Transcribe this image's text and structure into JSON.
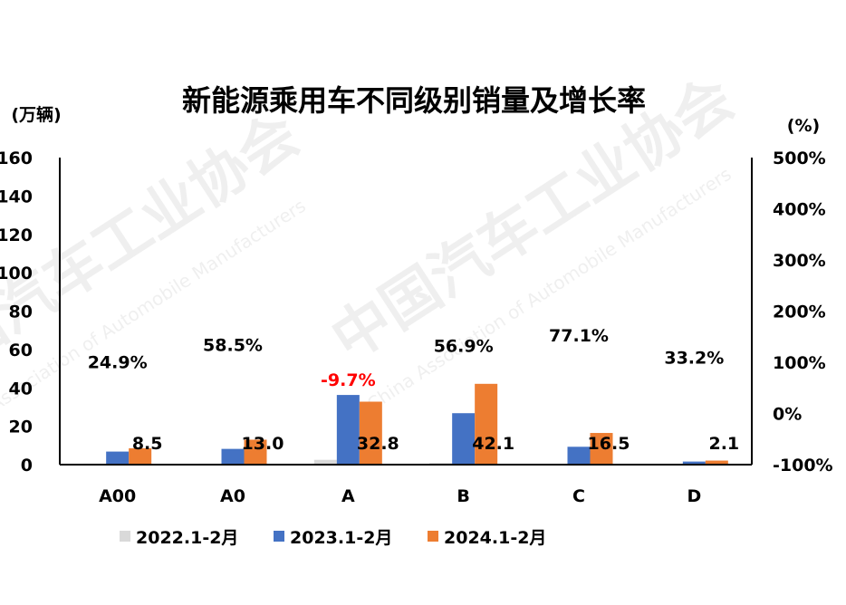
{
  "chart_data": {
    "type": "bar",
    "title": "新能源乘用车不同级别销量及增长率",
    "ylabel_left": "(万辆)",
    "ylabel_right": "(%)",
    "categories": [
      "A00",
      "A0",
      "A",
      "B",
      "C",
      "D"
    ],
    "ylim": [
      0,
      160
    ],
    "yticks": [
      "0",
      "20",
      "40",
      "60",
      "80",
      "100",
      "120",
      "140",
      "160"
    ],
    "y2lim": [
      -100,
      500
    ],
    "y2ticks": [
      "-100%",
      "0%",
      "100%",
      "200%",
      "300%",
      "400%",
      "500%"
    ],
    "series": [
      {
        "name": "2022.1-2月",
        "values": [
          0.5,
          0.5,
          2.5,
          0.8,
          0.2,
          0.2
        ],
        "color": "#d9d9d9"
      },
      {
        "name": "2023.1-2月",
        "values": [
          6.8,
          8.2,
          36.3,
          26.8,
          9.3,
          1.6
        ],
        "color": "#4472c4"
      },
      {
        "name": "2024.1-2月",
        "values": [
          8.5,
          13.0,
          32.8,
          42.1,
          16.5,
          2.1
        ],
        "color": "#ed7d31"
      }
    ],
    "value_labels": [
      "8.5",
      "13.0",
      "32.8",
      "42.1",
      "16.5",
      "2.1"
    ],
    "growth_labels": [
      "24.9%",
      "58.5%",
      "-9.7%",
      "56.9%",
      "77.1%",
      "33.2%"
    ],
    "growth_values": [
      24.9,
      58.5,
      -9.7,
      56.9,
      77.1,
      33.2
    ],
    "growth_colors": [
      "#000000",
      "#000000",
      "#ff0000",
      "#000000",
      "#000000",
      "#000000"
    ],
    "watermark": "中国汽车工业协会",
    "watermark_en": "China Association of Automobile Manufacturers",
    "legend_position": "bottom",
    "grid": false
  }
}
